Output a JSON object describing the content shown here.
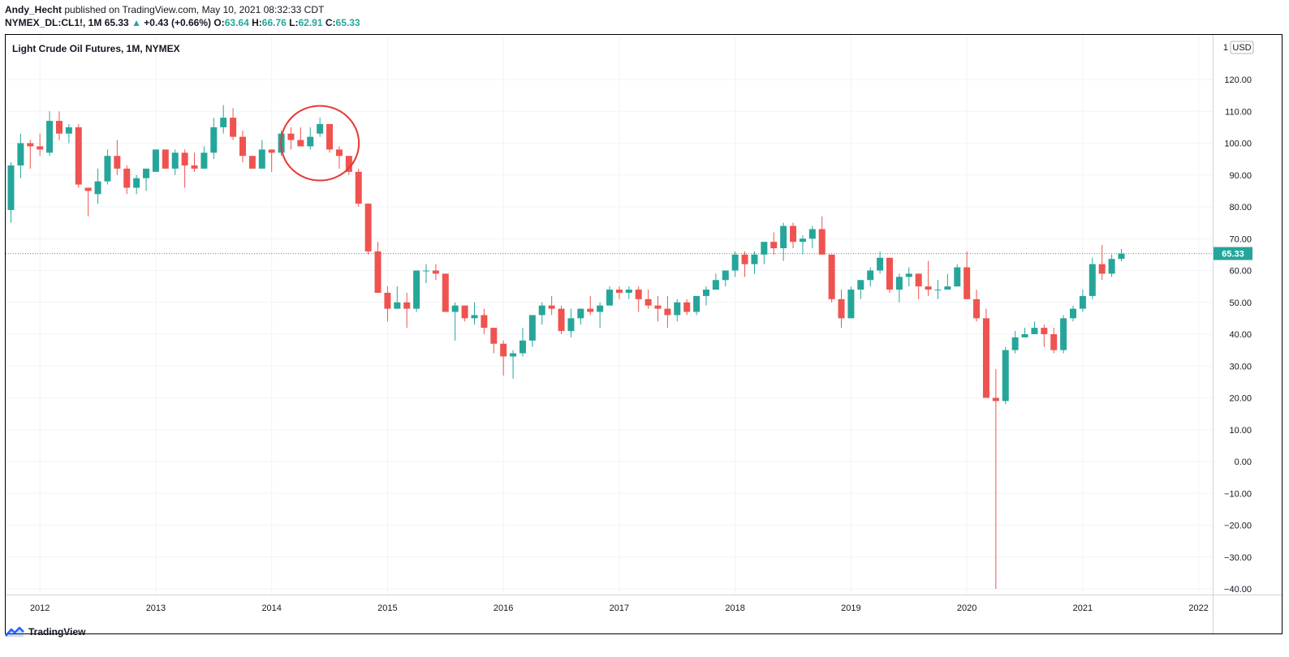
{
  "header": {
    "author": "Andy_Hecht",
    "published": " published on TradingView.com, May 10, 2021 08:32:33 CDT",
    "symbol": "NYMEX_DL:CL1!, 1M",
    "last": "65.33",
    "change_arrow": "▲",
    "change": "+0.43 (+0.66%)",
    "o_label": "O:",
    "o_value": "63.64",
    "h_label": "H:",
    "h_value": "66.76",
    "l_label": "L:",
    "l_value": "62.91",
    "c_label": "C:",
    "c_value": "65.33"
  },
  "footer": {
    "brand": "TradingView",
    "logo_icon": "tradingview-logo-icon"
  },
  "colors": {
    "up": "#26a69a",
    "down": "#ef5350",
    "grid": "#f0f3fa",
    "annotation": "#e53935"
  },
  "chart_data": {
    "type": "candlestick",
    "title": "Light Crude Oil Futures, 1M, NYMEX",
    "currency": "USD",
    "scale_label": "1",
    "interval": "1M",
    "last_price": 65.33,
    "last_price_label": "65.33",
    "xlim": [
      "2011-10",
      "2022-02"
    ],
    "ylim": [
      -42,
      128
    ],
    "x_ticks": [
      "2012",
      "2013",
      "2014",
      "2015",
      "2016",
      "2017",
      "2018",
      "2019",
      "2020",
      "2021",
      "2022"
    ],
    "y_ticks": [
      120,
      110,
      100,
      90,
      80,
      70,
      60,
      50,
      40,
      30,
      20,
      10,
      0,
      -10,
      -20,
      -30,
      -40
    ],
    "y_tick_labels": [
      "120.00",
      "110.00",
      "100.00",
      "90.00",
      "80.00",
      "70.00",
      "60.00",
      "50.00",
      "40.00",
      "30.00",
      "20.00",
      "10.00",
      "0.00",
      "−10.00",
      "−20.00",
      "−30.00",
      "−40.00"
    ],
    "annotation": {
      "type": "circle",
      "around": [
        "2014-04",
        "2014-08"
      ],
      "price_center": 100
    },
    "candles": [
      {
        "t": "2011-10",
        "o": 79,
        "h": 94,
        "l": 75,
        "c": 93
      },
      {
        "t": "2011-11",
        "o": 93,
        "h": 103,
        "l": 89,
        "c": 100
      },
      {
        "t": "2011-12",
        "o": 100,
        "h": 101,
        "l": 92,
        "c": 99
      },
      {
        "t": "2012-01",
        "o": 99,
        "h": 103,
        "l": 96,
        "c": 98
      },
      {
        "t": "2012-02",
        "o": 97,
        "h": 110,
        "l": 96,
        "c": 107
      },
      {
        "t": "2012-03",
        "o": 107,
        "h": 110,
        "l": 101,
        "c": 103
      },
      {
        "t": "2012-04",
        "o": 103,
        "h": 106,
        "l": 100,
        "c": 105
      },
      {
        "t": "2012-05",
        "o": 105,
        "h": 106,
        "l": 86,
        "c": 87
      },
      {
        "t": "2012-06",
        "o": 86,
        "h": 86,
        "l": 77,
        "c": 85
      },
      {
        "t": "2012-07",
        "o": 84,
        "h": 92,
        "l": 81,
        "c": 88
      },
      {
        "t": "2012-08",
        "o": 88,
        "h": 98,
        "l": 87,
        "c": 96
      },
      {
        "t": "2012-09",
        "o": 96,
        "h": 101,
        "l": 90,
        "c": 92
      },
      {
        "t": "2012-10",
        "o": 92,
        "h": 93,
        "l": 84,
        "c": 86
      },
      {
        "t": "2012-11",
        "o": 86,
        "h": 90,
        "l": 84,
        "c": 89
      },
      {
        "t": "2012-12",
        "o": 89,
        "h": 92,
        "l": 85,
        "c": 92
      },
      {
        "t": "2013-01",
        "o": 91,
        "h": 98,
        "l": 91,
        "c": 98
      },
      {
        "t": "2013-02",
        "o": 98,
        "h": 98,
        "l": 92,
        "c": 92
      },
      {
        "t": "2013-03",
        "o": 92,
        "h": 98,
        "l": 90,
        "c": 97
      },
      {
        "t": "2013-04",
        "o": 97,
        "h": 98,
        "l": 86,
        "c": 93
      },
      {
        "t": "2013-05",
        "o": 93,
        "h": 97,
        "l": 91,
        "c": 92
      },
      {
        "t": "2013-06",
        "o": 92,
        "h": 99,
        "l": 92,
        "c": 97
      },
      {
        "t": "2013-07",
        "o": 97,
        "h": 108,
        "l": 95,
        "c": 105
      },
      {
        "t": "2013-08",
        "o": 105,
        "h": 112,
        "l": 103,
        "c": 108
      },
      {
        "t": "2013-09",
        "o": 108,
        "h": 111,
        "l": 101,
        "c": 102
      },
      {
        "t": "2013-10",
        "o": 102,
        "h": 104,
        "l": 94,
        "c": 96
      },
      {
        "t": "2013-11",
        "o": 96,
        "h": 96,
        "l": 92,
        "c": 92
      },
      {
        "t": "2013-12",
        "o": 92,
        "h": 101,
        "l": 92,
        "c": 98
      },
      {
        "t": "2014-01",
        "o": 98,
        "h": 98,
        "l": 91,
        "c": 97
      },
      {
        "t": "2014-02",
        "o": 97,
        "h": 104,
        "l": 96,
        "c": 103
      },
      {
        "t": "2014-03",
        "o": 103,
        "h": 105,
        "l": 98,
        "c": 101
      },
      {
        "t": "2014-04",
        "o": 101,
        "h": 105,
        "l": 99,
        "c": 99
      },
      {
        "t": "2014-05",
        "o": 99,
        "h": 105,
        "l": 98,
        "c": 102
      },
      {
        "t": "2014-06",
        "o": 103,
        "h": 108,
        "l": 102,
        "c": 106
      },
      {
        "t": "2014-07",
        "o": 106,
        "h": 106,
        "l": 97,
        "c": 98
      },
      {
        "t": "2014-08",
        "o": 98,
        "h": 99,
        "l": 92,
        "c": 96
      },
      {
        "t": "2014-09",
        "o": 96,
        "h": 96,
        "l": 90,
        "c": 91
      },
      {
        "t": "2014-10",
        "o": 91,
        "h": 92,
        "l": 80,
        "c": 81
      },
      {
        "t": "2014-11",
        "o": 81,
        "h": 81,
        "l": 65,
        "c": 66
      },
      {
        "t": "2014-12",
        "o": 66,
        "h": 69,
        "l": 53,
        "c": 53
      },
      {
        "t": "2015-01",
        "o": 53,
        "h": 55,
        "l": 44,
        "c": 48
      },
      {
        "t": "2015-02",
        "o": 48,
        "h": 55,
        "l": 48,
        "c": 50
      },
      {
        "t": "2015-03",
        "o": 50,
        "h": 53,
        "l": 42,
        "c": 48
      },
      {
        "t": "2015-04",
        "o": 48,
        "h": 60,
        "l": 47,
        "c": 60
      },
      {
        "t": "2015-05",
        "o": 60,
        "h": 62,
        "l": 56,
        "c": 60
      },
      {
        "t": "2015-06",
        "o": 60,
        "h": 62,
        "l": 57,
        "c": 59
      },
      {
        "t": "2015-07",
        "o": 59,
        "h": 59,
        "l": 47,
        "c": 47
      },
      {
        "t": "2015-08",
        "o": 47,
        "h": 50,
        "l": 38,
        "c": 49
      },
      {
        "t": "2015-09",
        "o": 49,
        "h": 49,
        "l": 44,
        "c": 45
      },
      {
        "t": "2015-10",
        "o": 45,
        "h": 50,
        "l": 43,
        "c": 46
      },
      {
        "t": "2015-11",
        "o": 46,
        "h": 48,
        "l": 40,
        "c": 42
      },
      {
        "t": "2015-12",
        "o": 42,
        "h": 42,
        "l": 34,
        "c": 37
      },
      {
        "t": "2016-01",
        "o": 37,
        "h": 38,
        "l": 27,
        "c": 33
      },
      {
        "t": "2016-02",
        "o": 33,
        "h": 35,
        "l": 26,
        "c": 34
      },
      {
        "t": "2016-03",
        "o": 34,
        "h": 42,
        "l": 33,
        "c": 38
      },
      {
        "t": "2016-04",
        "o": 38,
        "h": 46,
        "l": 36,
        "c": 46
      },
      {
        "t": "2016-05",
        "o": 46,
        "h": 50,
        "l": 43,
        "c": 49
      },
      {
        "t": "2016-06",
        "o": 49,
        "h": 52,
        "l": 46,
        "c": 48
      },
      {
        "t": "2016-07",
        "o": 48,
        "h": 49,
        "l": 40,
        "c": 41
      },
      {
        "t": "2016-08",
        "o": 41,
        "h": 48,
        "l": 39,
        "c": 45
      },
      {
        "t": "2016-09",
        "o": 45,
        "h": 48,
        "l": 43,
        "c": 48
      },
      {
        "t": "2016-10",
        "o": 48,
        "h": 52,
        "l": 46,
        "c": 47
      },
      {
        "t": "2016-11",
        "o": 47,
        "h": 50,
        "l": 42,
        "c": 49
      },
      {
        "t": "2016-12",
        "o": 49,
        "h": 55,
        "l": 49,
        "c": 54
      },
      {
        "t": "2017-01",
        "o": 54,
        "h": 55,
        "l": 51,
        "c": 53
      },
      {
        "t": "2017-02",
        "o": 53,
        "h": 55,
        "l": 51,
        "c": 54
      },
      {
        "t": "2017-03",
        "o": 54,
        "h": 55,
        "l": 47,
        "c": 51
      },
      {
        "t": "2017-04",
        "o": 51,
        "h": 54,
        "l": 48,
        "c": 49
      },
      {
        "t": "2017-05",
        "o": 49,
        "h": 52,
        "l": 44,
        "c": 48
      },
      {
        "t": "2017-06",
        "o": 48,
        "h": 52,
        "l": 42,
        "c": 46
      },
      {
        "t": "2017-07",
        "o": 46,
        "h": 51,
        "l": 44,
        "c": 50
      },
      {
        "t": "2017-08",
        "o": 50,
        "h": 51,
        "l": 46,
        "c": 47
      },
      {
        "t": "2017-09",
        "o": 47,
        "h": 52,
        "l": 46,
        "c": 52
      },
      {
        "t": "2017-10",
        "o": 52,
        "h": 55,
        "l": 49,
        "c": 54
      },
      {
        "t": "2017-11",
        "o": 54,
        "h": 59,
        "l": 54,
        "c": 57
      },
      {
        "t": "2017-12",
        "o": 57,
        "h": 60,
        "l": 55,
        "c": 60
      },
      {
        "t": "2018-01",
        "o": 60,
        "h": 66,
        "l": 58,
        "c": 65
      },
      {
        "t": "2018-02",
        "o": 65,
        "h": 66,
        "l": 58,
        "c": 62
      },
      {
        "t": "2018-03",
        "o": 62,
        "h": 66,
        "l": 59,
        "c": 65
      },
      {
        "t": "2018-04",
        "o": 65,
        "h": 69,
        "l": 62,
        "c": 69
      },
      {
        "t": "2018-05",
        "o": 69,
        "h": 72,
        "l": 65,
        "c": 67
      },
      {
        "t": "2018-06",
        "o": 67,
        "h": 75,
        "l": 63,
        "c": 74
      },
      {
        "t": "2018-07",
        "o": 74,
        "h": 75,
        "l": 67,
        "c": 69
      },
      {
        "t": "2018-08",
        "o": 69,
        "h": 71,
        "l": 65,
        "c": 70
      },
      {
        "t": "2018-09",
        "o": 70,
        "h": 74,
        "l": 67,
        "c": 73
      },
      {
        "t": "2018-10",
        "o": 73,
        "h": 77,
        "l": 65,
        "c": 65
      },
      {
        "t": "2018-11",
        "o": 65,
        "h": 65,
        "l": 50,
        "c": 51
      },
      {
        "t": "2018-12",
        "o": 51,
        "h": 54,
        "l": 42,
        "c": 45
      },
      {
        "t": "2019-01",
        "o": 45,
        "h": 55,
        "l": 45,
        "c": 54
      },
      {
        "t": "2019-02",
        "o": 54,
        "h": 57,
        "l": 51,
        "c": 57
      },
      {
        "t": "2019-03",
        "o": 57,
        "h": 61,
        "l": 55,
        "c": 60
      },
      {
        "t": "2019-04",
        "o": 60,
        "h": 66,
        "l": 59,
        "c": 64
      },
      {
        "t": "2019-05",
        "o": 64,
        "h": 64,
        "l": 53,
        "c": 54
      },
      {
        "t": "2019-06",
        "o": 54,
        "h": 59,
        "l": 50,
        "c": 58
      },
      {
        "t": "2019-07",
        "o": 58,
        "h": 61,
        "l": 55,
        "c": 59
      },
      {
        "t": "2019-08",
        "o": 59,
        "h": 59,
        "l": 51,
        "c": 55
      },
      {
        "t": "2019-09",
        "o": 55,
        "h": 63,
        "l": 52,
        "c": 54
      },
      {
        "t": "2019-10",
        "o": 54,
        "h": 57,
        "l": 51,
        "c": 54
      },
      {
        "t": "2019-11",
        "o": 54,
        "h": 59,
        "l": 54,
        "c": 55
      },
      {
        "t": "2019-12",
        "o": 55,
        "h": 62,
        "l": 55,
        "c": 61
      },
      {
        "t": "2020-01",
        "o": 61,
        "h": 66,
        "l": 51,
        "c": 51
      },
      {
        "t": "2020-02",
        "o": 51,
        "h": 54,
        "l": 44,
        "c": 45
      },
      {
        "t": "2020-03",
        "o": 45,
        "h": 48,
        "l": 20,
        "c": 20
      },
      {
        "t": "2020-04",
        "o": 20,
        "h": 29,
        "l": -40,
        "c": 19
      },
      {
        "t": "2020-05",
        "o": 19,
        "h": 36,
        "l": 18,
        "c": 35
      },
      {
        "t": "2020-06",
        "o": 35,
        "h": 41,
        "l": 34,
        "c": 39
      },
      {
        "t": "2020-07",
        "o": 39,
        "h": 42,
        "l": 39,
        "c": 40
      },
      {
        "t": "2020-08",
        "o": 40,
        "h": 44,
        "l": 40,
        "c": 42
      },
      {
        "t": "2020-09",
        "o": 42,
        "h": 43,
        "l": 36,
        "c": 40
      },
      {
        "t": "2020-10",
        "o": 40,
        "h": 42,
        "l": 34,
        "c": 35
      },
      {
        "t": "2020-11",
        "o": 35,
        "h": 46,
        "l": 34,
        "c": 45
      },
      {
        "t": "2020-12",
        "o": 45,
        "h": 49,
        "l": 44,
        "c": 48
      },
      {
        "t": "2021-01",
        "o": 48,
        "h": 54,
        "l": 47,
        "c": 52
      },
      {
        "t": "2021-02",
        "o": 52,
        "h": 64,
        "l": 51,
        "c": 62
      },
      {
        "t": "2021-03",
        "o": 62,
        "h": 68,
        "l": 57,
        "c": 59
      },
      {
        "t": "2021-04",
        "o": 59,
        "h": 65,
        "l": 58,
        "c": 63.64
      },
      {
        "t": "2021-05",
        "o": 63.64,
        "h": 66.76,
        "l": 62.91,
        "c": 65.33
      }
    ]
  }
}
